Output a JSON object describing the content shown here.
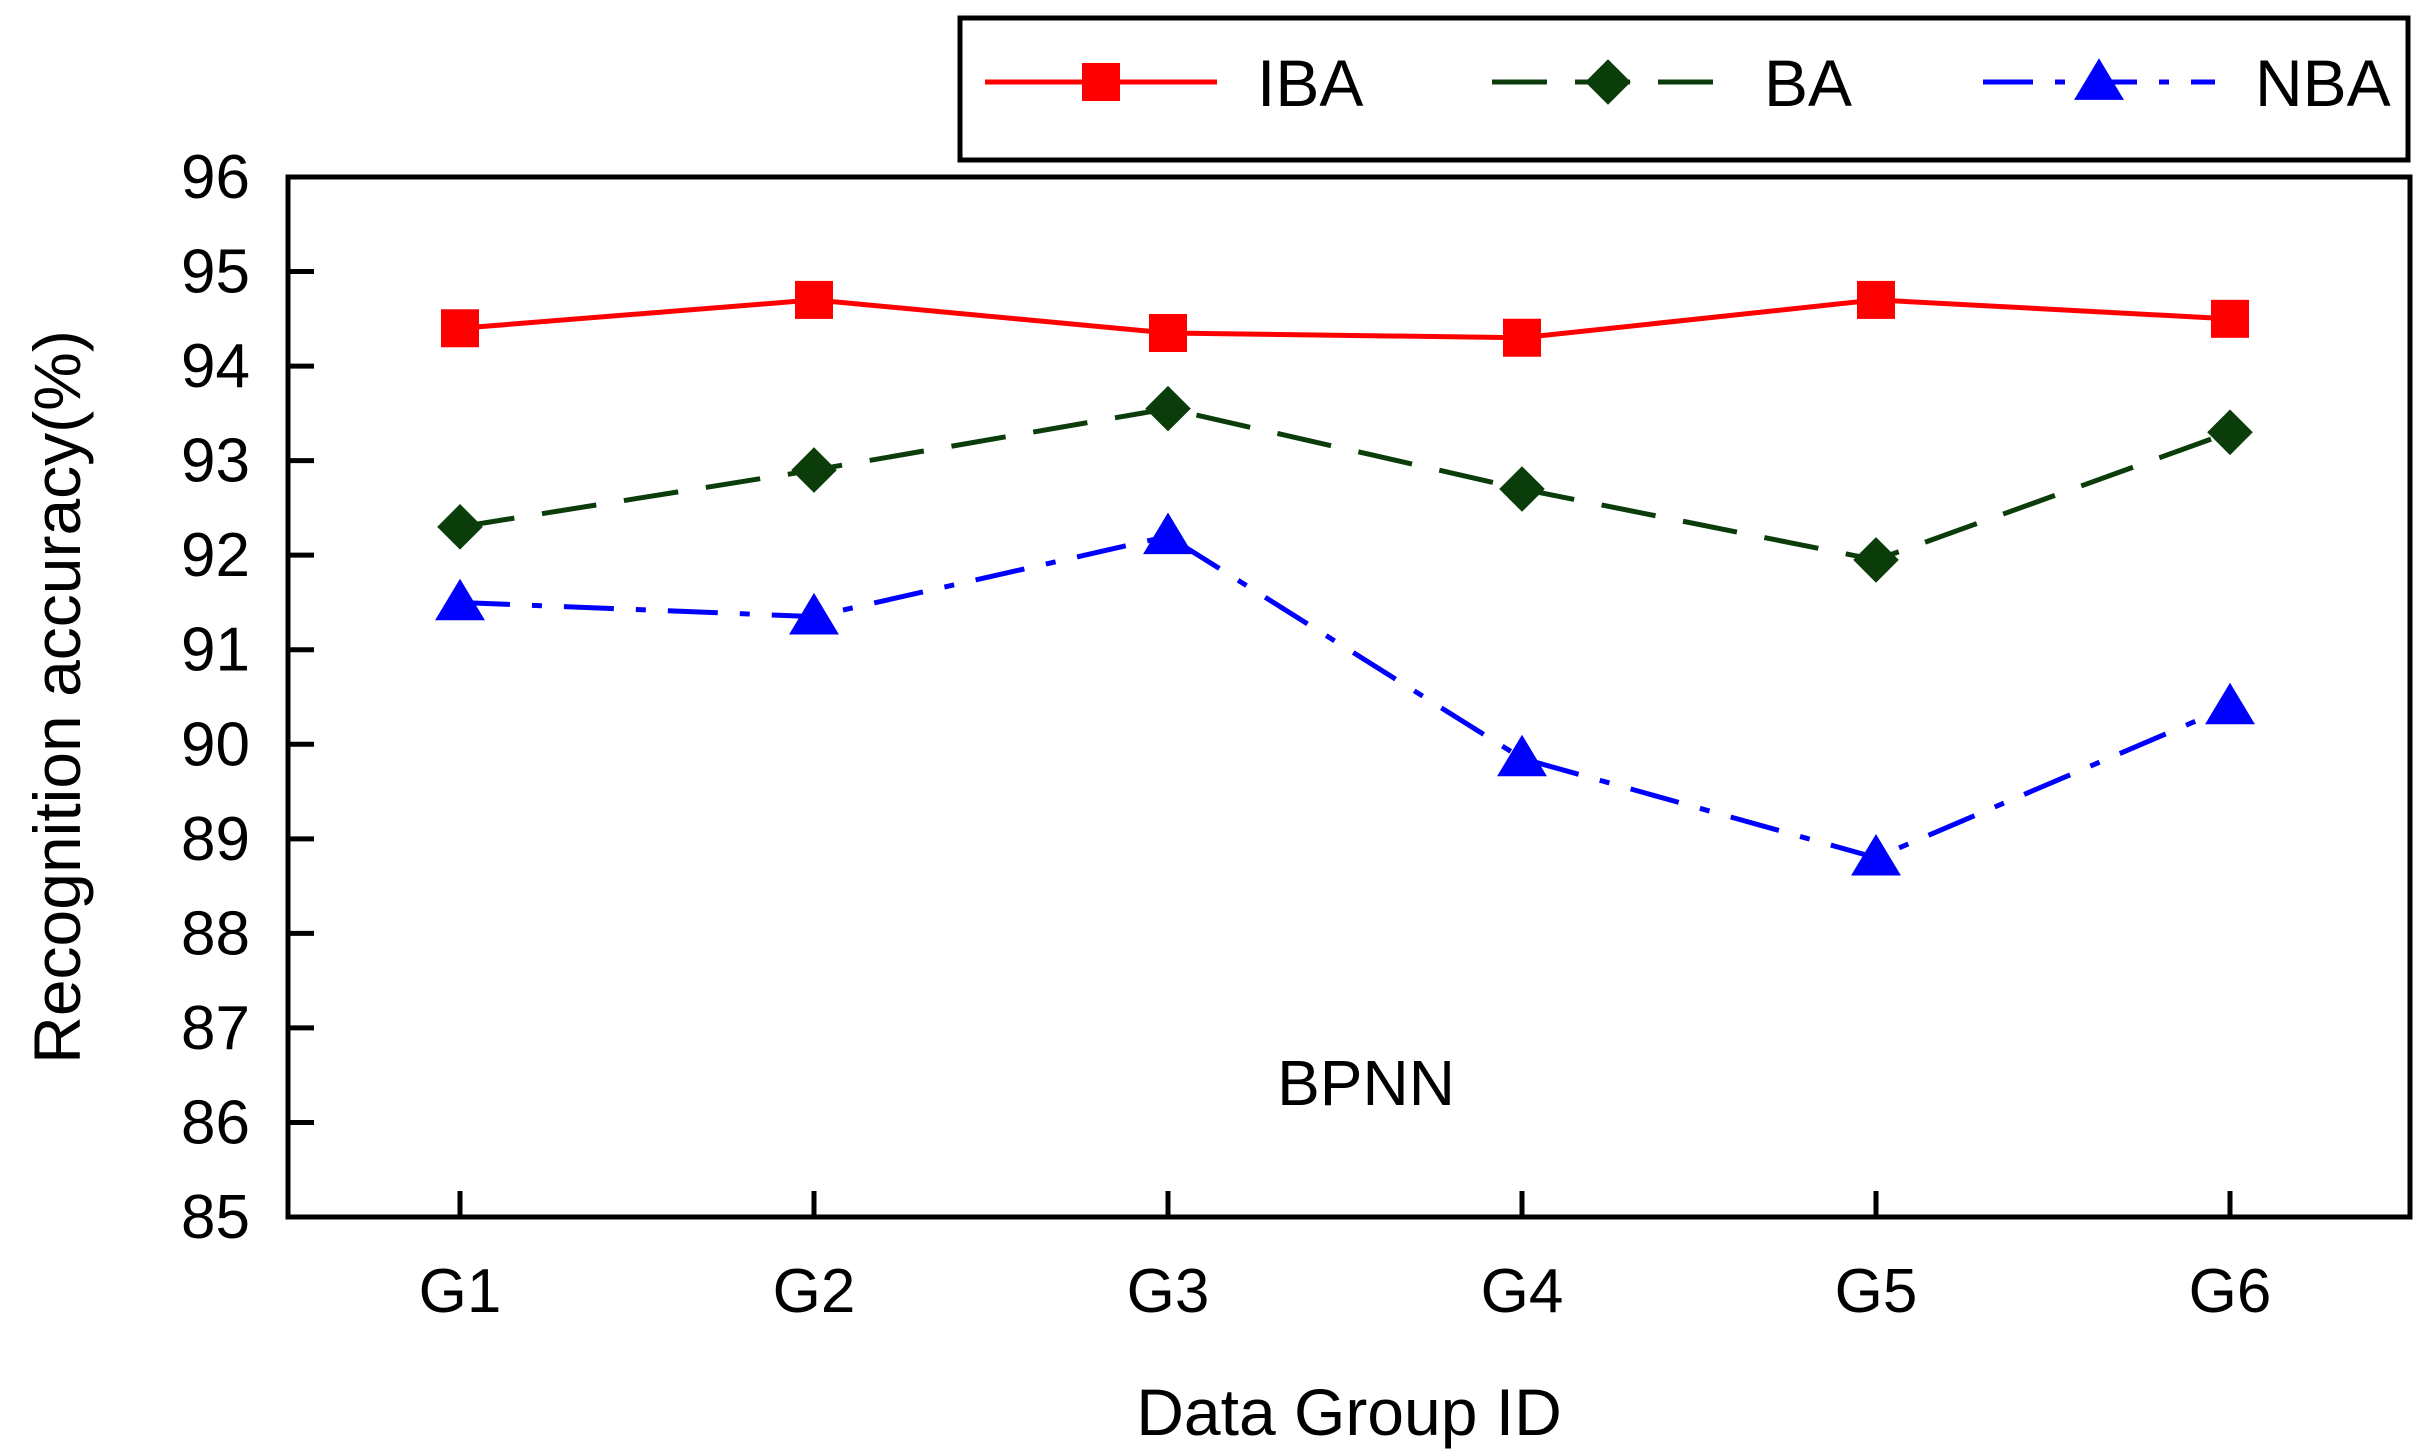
{
  "chart_data": {
    "type": "line",
    "title": "",
    "annotation": "BPNN",
    "xlabel": "Data Group ID",
    "ylabel": "Recognition accuracy(%)",
    "categories": [
      "G1",
      "G2",
      "G3",
      "G4",
      "G5",
      "G6"
    ],
    "ylim": [
      85,
      96
    ],
    "yticks": [
      85,
      86,
      87,
      88,
      89,
      90,
      91,
      92,
      93,
      94,
      95,
      96
    ],
    "grid": false,
    "legend_position": "top",
    "series": [
      {
        "name": "IBA",
        "values": [
          94.4,
          94.7,
          94.35,
          94.3,
          94.7,
          94.5
        ],
        "color": "#ff0000",
        "marker": "square",
        "line_style": "solid"
      },
      {
        "name": "BA",
        "values": [
          92.3,
          92.9,
          93.55,
          92.7,
          91.95,
          93.3
        ],
        "color": "#0b3d0b",
        "marker": "diamond",
        "line_style": "dashed"
      },
      {
        "name": "NBA",
        "values": [
          91.5,
          91.35,
          92.2,
          89.85,
          88.8,
          90.4
        ],
        "color": "#0000ff",
        "marker": "triangle",
        "line_style": "dash-dot"
      }
    ]
  }
}
